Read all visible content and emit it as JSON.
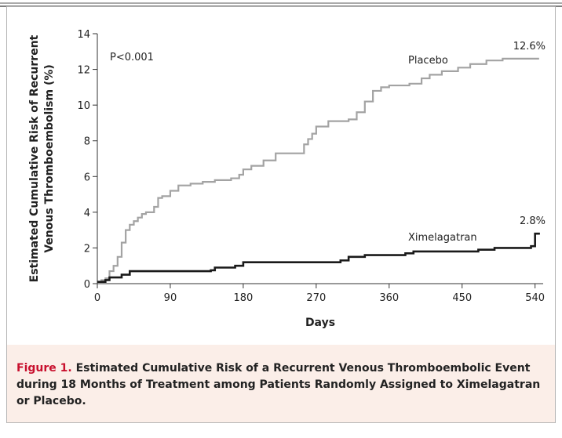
{
  "chart_data": {
    "type": "step",
    "xlabel": "Days",
    "ylabel": [
      "Estimated Cumulative Risk of Recurrent",
      "Venous Thromboembolism (%)"
    ],
    "annotation": "P<0.001",
    "xlim": [
      0,
      550
    ],
    "xticks": [
      0,
      90,
      180,
      270,
      360,
      450,
      540
    ],
    "ylim": [
      0,
      14
    ],
    "yticks": [
      0,
      2,
      4,
      6,
      8,
      10,
      12,
      14
    ],
    "series": [
      {
        "name": "Placebo",
        "color": "#a3a3a3",
        "end_label": "12.6%",
        "x": [
          0,
          5,
          10,
          15,
          20,
          25,
          30,
          35,
          40,
          45,
          50,
          55,
          60,
          70,
          75,
          80,
          90,
          100,
          115,
          130,
          145,
          165,
          175,
          180,
          190,
          205,
          220,
          250,
          255,
          260,
          265,
          270,
          285,
          310,
          320,
          330,
          340,
          350,
          360,
          385,
          400,
          410,
          425,
          445,
          460,
          480,
          500,
          545
        ],
        "values": [
          0.1,
          0.2,
          0.3,
          0.7,
          1.0,
          1.5,
          2.3,
          3.0,
          3.3,
          3.5,
          3.7,
          3.9,
          4.0,
          4.3,
          4.8,
          4.9,
          5.2,
          5.5,
          5.6,
          5.7,
          5.8,
          5.9,
          6.1,
          6.4,
          6.6,
          6.9,
          7.3,
          7.3,
          7.8,
          8.1,
          8.4,
          8.8,
          9.1,
          9.2,
          9.6,
          10.2,
          10.8,
          11.0,
          11.1,
          11.2,
          11.5,
          11.7,
          11.9,
          12.1,
          12.3,
          12.5,
          12.6,
          12.6
        ]
      },
      {
        "name": "Ximelagatran",
        "color": "#1a1a1a",
        "end_label": "2.8%",
        "x": [
          0,
          10,
          15,
          30,
          40,
          140,
          145,
          170,
          180,
          300,
          310,
          330,
          380,
          390,
          470,
          490,
          535,
          540,
          546
        ],
        "values": [
          0.1,
          0.2,
          0.35,
          0.5,
          0.7,
          0.75,
          0.9,
          1.0,
          1.2,
          1.3,
          1.5,
          1.6,
          1.7,
          1.8,
          1.9,
          2.0,
          2.1,
          2.8,
          2.8
        ]
      }
    ]
  },
  "caption": {
    "label": "Figure 1.",
    "text": "Estimated Cumulative Risk of a Recurrent Venous Thromboembolic Event during 18 Months of Treatment among Patients Randomly Assigned to Ximelagatran or Placebo."
  }
}
